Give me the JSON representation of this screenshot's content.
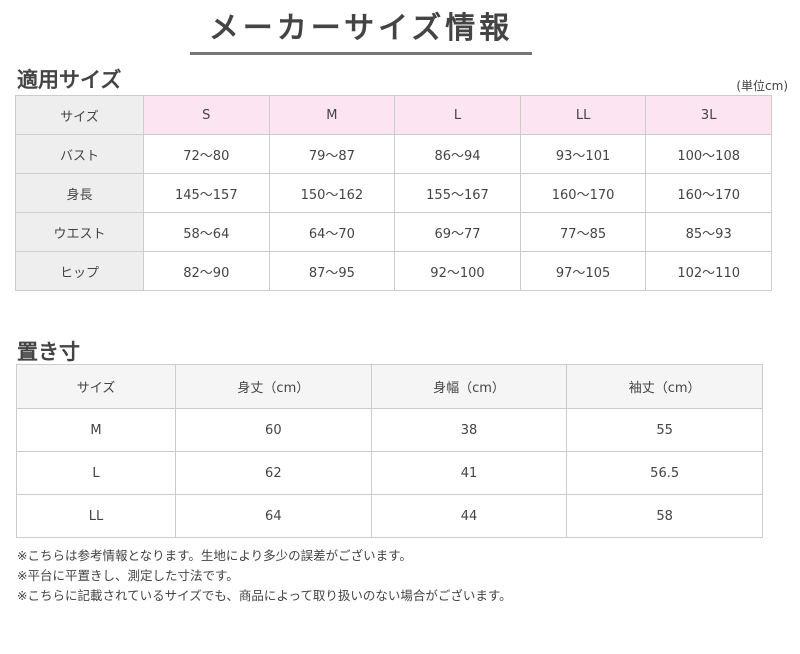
{
  "title": "メーカーサイズ情報",
  "section1": {
    "heading": "適用サイズ",
    "unit": "(単位cm)",
    "header": [
      "サイズ",
      "S",
      "M",
      "L",
      "LL",
      "3L"
    ],
    "rows": [
      [
        "バスト",
        "72〜80",
        "79〜87",
        "86〜94",
        "93〜101",
        "100〜108"
      ],
      [
        "身長",
        "145〜157",
        "150〜162",
        "155〜167",
        "160〜170",
        "160〜170"
      ],
      [
        "ウエスト",
        "58〜64",
        "64〜70",
        "69〜77",
        "77〜85",
        "85〜93"
      ],
      [
        "ヒップ",
        "82〜90",
        "87〜95",
        "92〜100",
        "97〜105",
        "102〜110"
      ]
    ]
  },
  "section2": {
    "heading": "置き寸",
    "header": [
      "サイズ",
      "身丈（cm）",
      "身幅（cm）",
      "袖丈（cm）"
    ],
    "rows": [
      [
        "M",
        "60",
        "38",
        "55"
      ],
      [
        "L",
        "62",
        "41",
        "56.5"
      ],
      [
        "LL",
        "64",
        "44",
        "58"
      ]
    ]
  },
  "notes": [
    "※こちらは参考情報となります。生地により多少の誤差がございます。",
    "※平台に平置きし、測定した寸法です。",
    "※こちらに記載されているサイズでも、商品によって取り扱いのない場合がございます。"
  ],
  "colors": {
    "size_header_bg": "#fde4f2",
    "label_bg": "#eeeeee"
  }
}
